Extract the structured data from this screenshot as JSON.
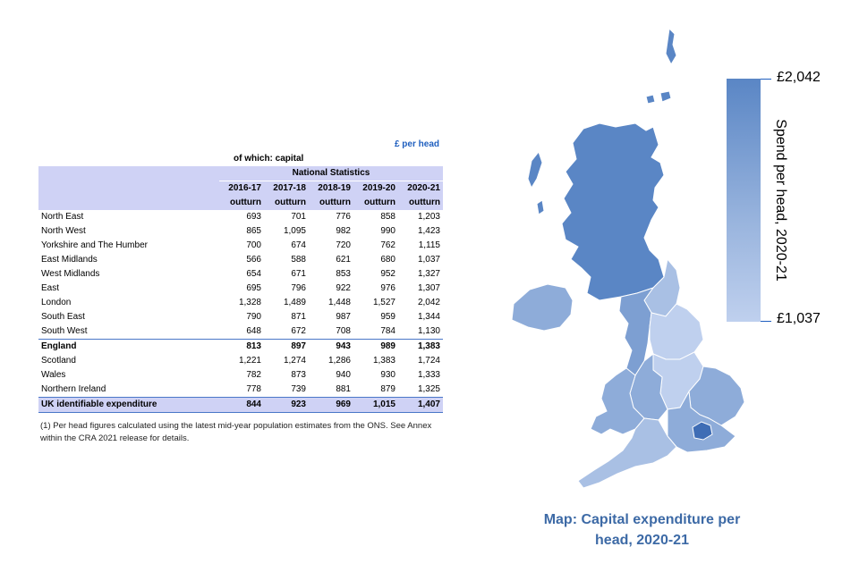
{
  "table": {
    "unit": "£ per head",
    "subtitle": "of which: capital",
    "group_header": "National Statistics",
    "columns": [
      {
        "year": "2016-17",
        "sub": "outturn"
      },
      {
        "year": "2017-18",
        "sub": "outturn"
      },
      {
        "year": "2018-19",
        "sub": "outturn"
      },
      {
        "year": "2019-20",
        "sub": "outturn"
      },
      {
        "year": "2020-21",
        "sub": "outturn"
      }
    ],
    "rows": [
      {
        "name": "North East",
        "values": [
          "693",
          "701",
          "776",
          "858",
          "1,203"
        ]
      },
      {
        "name": "North West",
        "values": [
          "865",
          "1,095",
          "982",
          "990",
          "1,423"
        ]
      },
      {
        "name": "Yorkshire and The Humber",
        "values": [
          "700",
          "674",
          "720",
          "762",
          "1,115"
        ]
      },
      {
        "name": "East Midlands",
        "values": [
          "566",
          "588",
          "621",
          "680",
          "1,037"
        ]
      },
      {
        "name": "West Midlands",
        "values": [
          "654",
          "671",
          "853",
          "952",
          "1,327"
        ]
      },
      {
        "name": "East",
        "values": [
          "695",
          "796",
          "922",
          "976",
          "1,307"
        ]
      },
      {
        "name": "London",
        "values": [
          "1,328",
          "1,489",
          "1,448",
          "1,527",
          "2,042"
        ]
      },
      {
        "name": "South East",
        "values": [
          "790",
          "871",
          "987",
          "959",
          "1,344"
        ]
      },
      {
        "name": "South West",
        "values": [
          "648",
          "672",
          "708",
          "784",
          "1,130"
        ]
      },
      {
        "name": "England",
        "values": [
          "813",
          "897",
          "943",
          "989",
          "1,383"
        ],
        "style": "england"
      },
      {
        "name": "Scotland",
        "values": [
          "1,221",
          "1,274",
          "1,286",
          "1,383",
          "1,724"
        ]
      },
      {
        "name": "Wales",
        "values": [
          "782",
          "873",
          "940",
          "930",
          "1,333"
        ]
      },
      {
        "name": "Northern Ireland",
        "values": [
          "778",
          "739",
          "881",
          "879",
          "1,325"
        ]
      },
      {
        "name": "UK identifiable expenditure",
        "values": [
          "844",
          "923",
          "969",
          "1,015",
          "1,407"
        ],
        "style": "total"
      }
    ],
    "footnote": "(1) Per head figures calculated using the latest mid-year population estimates from the ONS. See Annex within the CRA 2021 release for details."
  },
  "map": {
    "caption": "Map: Capital expenditure per head, 2020-21",
    "colors": {
      "london": "#3f6db5",
      "scotland": "#5a86c5",
      "north_west": "#7d9fd2",
      "mid": "#8eacd9",
      "light": "#a9c0e4",
      "lightest": "#bfd0ee",
      "outline": "#ffffff"
    }
  },
  "legend": {
    "title": "Spend per head, 2020-21",
    "max_label": "£2,042",
    "min_label": "£1,037"
  }
}
